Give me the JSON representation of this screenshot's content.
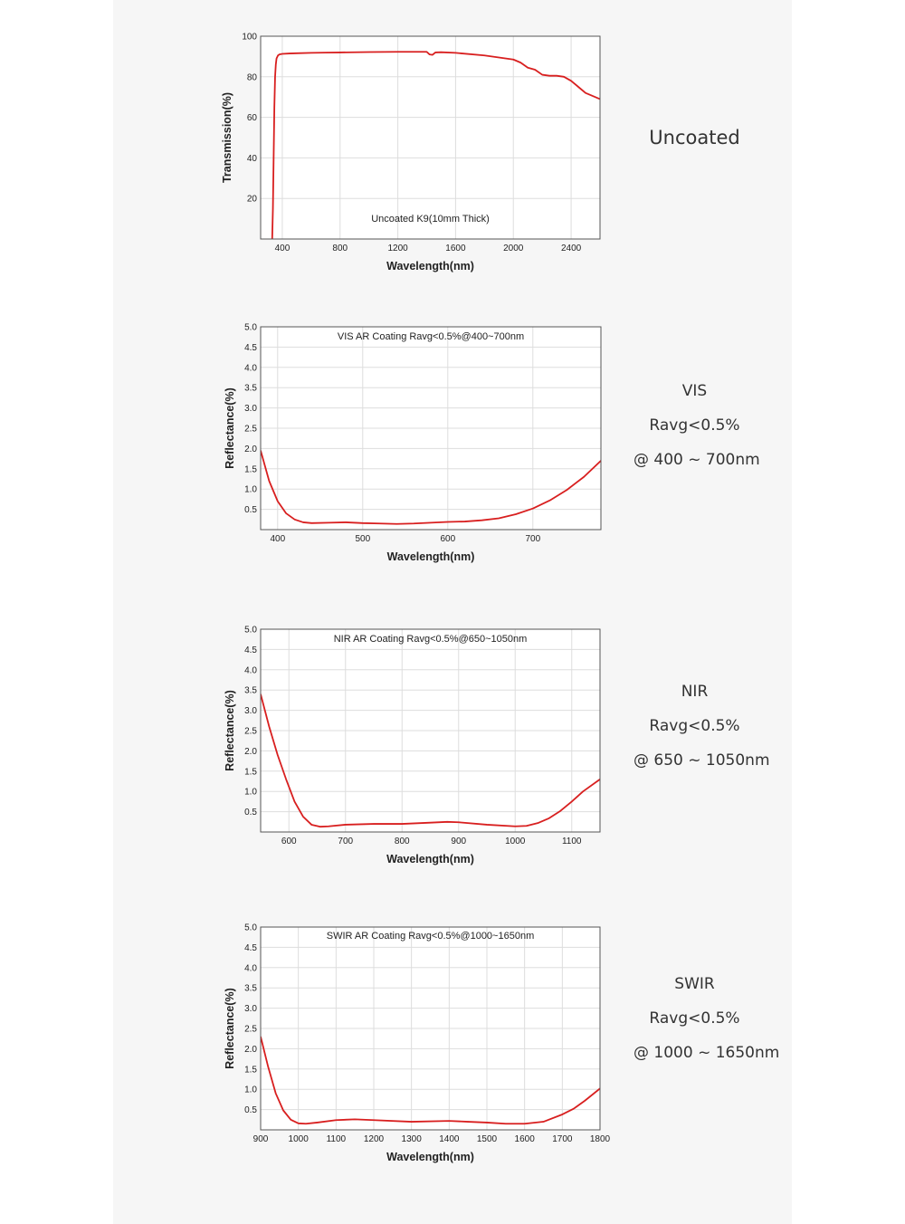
{
  "colors": {
    "curve": "#d81f1f",
    "grid": "#dddddd",
    "frame": "#555555",
    "panel": "#f6f6f6"
  },
  "panels": [
    {
      "side": {
        "lines": [
          "Uncoated"
        ]
      }
    },
    {
      "side": {
        "lines": [
          "VIS",
          "Ravg<0.5%",
          "@ 400 ~ 700nm"
        ]
      }
    },
    {
      "side": {
        "lines": [
          "NIR",
          "Ravg<0.5%",
          "@ 650 ~ 1050nm"
        ]
      }
    },
    {
      "side": {
        "lines": [
          "SWIR",
          "Ravg<0.5%",
          "@ 1000 ~ 1650nm"
        ]
      }
    }
  ],
  "chart_data": [
    {
      "type": "line",
      "title": "Uncoated K9(10mm Thick)",
      "xlabel": "Wavelength(nm)",
      "ylabel": "Transmission(%)",
      "xlim": [
        250,
        2600
      ],
      "ylim": [
        0,
        100
      ],
      "xticks": [
        400,
        800,
        1200,
        1600,
        2000,
        2400
      ],
      "yticks": [
        20,
        40,
        60,
        80,
        100
      ],
      "grid": true,
      "x": [
        330,
        335,
        340,
        345,
        350,
        355,
        360,
        370,
        380,
        400,
        450,
        500,
        600,
        700,
        800,
        1000,
        1200,
        1400,
        1420,
        1440,
        1460,
        1500,
        1600,
        1800,
        2000,
        2050,
        2100,
        2150,
        2200,
        2250,
        2300,
        2350,
        2400,
        2450,
        2500,
        2550,
        2600
      ],
      "y": [
        0,
        15,
        40,
        65,
        80,
        86,
        89,
        90.5,
        91,
        91.3,
        91.5,
        91.6,
        91.8,
        91.9,
        92,
        92.2,
        92.3,
        92.3,
        91,
        90.8,
        92,
        92.1,
        91.8,
        90.5,
        88.5,
        87,
        84.5,
        83.5,
        81,
        80.5,
        80.5,
        80,
        78,
        75,
        72,
        70.5,
        69
      ]
    },
    {
      "type": "line",
      "title": "VIS AR Coating Ravg<0.5%@400~700nm",
      "xlabel": "Wavelength(nm)",
      "ylabel": "Reflectance(%)",
      "xlim": [
        380,
        780
      ],
      "ylim": [
        0,
        5
      ],
      "xticks": [
        400,
        500,
        600,
        700
      ],
      "yticks": [
        0.5,
        1.0,
        1.5,
        2.0,
        2.5,
        3.0,
        3.5,
        4.0,
        4.5,
        5.0
      ],
      "grid": true,
      "x": [
        380,
        390,
        400,
        410,
        420,
        430,
        440,
        460,
        480,
        500,
        520,
        540,
        560,
        580,
        600,
        620,
        640,
        660,
        680,
        700,
        720,
        740,
        760,
        780
      ],
      "y": [
        1.95,
        1.2,
        0.7,
        0.4,
        0.25,
        0.18,
        0.16,
        0.17,
        0.18,
        0.16,
        0.15,
        0.14,
        0.15,
        0.17,
        0.19,
        0.2,
        0.23,
        0.28,
        0.38,
        0.52,
        0.72,
        0.98,
        1.3,
        1.7
      ]
    },
    {
      "type": "line",
      "title": "NIR AR Coating Ravg<0.5%@650~1050nm",
      "xlabel": "Wavelength(nm)",
      "ylabel": "Reflectance(%)",
      "xlim": [
        550,
        1150
      ],
      "ylim": [
        0,
        5
      ],
      "xticks": [
        600,
        700,
        800,
        900,
        1000,
        1100
      ],
      "yticks": [
        0.5,
        1.0,
        1.5,
        2.0,
        2.5,
        3.0,
        3.5,
        4.0,
        4.5,
        5.0
      ],
      "grid": true,
      "x": [
        550,
        565,
        580,
        595,
        610,
        625,
        640,
        655,
        670,
        700,
        750,
        800,
        850,
        880,
        900,
        950,
        1000,
        1020,
        1040,
        1060,
        1080,
        1100,
        1120,
        1150
      ],
      "y": [
        3.4,
        2.6,
        1.9,
        1.3,
        0.75,
        0.38,
        0.18,
        0.13,
        0.14,
        0.18,
        0.2,
        0.2,
        0.23,
        0.25,
        0.24,
        0.18,
        0.14,
        0.15,
        0.22,
        0.34,
        0.52,
        0.75,
        1.0,
        1.3
      ]
    },
    {
      "type": "line",
      "title": "SWIR AR Coating Ravg<0.5%@1000~1650nm",
      "xlabel": "Wavelength(nm)",
      "ylabel": "Reflectance(%)",
      "xlim": [
        900,
        1800
      ],
      "ylim": [
        0,
        5
      ],
      "xticks": [
        900,
        1000,
        1100,
        1200,
        1300,
        1400,
        1500,
        1600,
        1700,
        1800
      ],
      "yticks": [
        0.5,
        1.0,
        1.5,
        2.0,
        2.5,
        3.0,
        3.5,
        4.0,
        4.5,
        5.0
      ],
      "grid": true,
      "x": [
        900,
        920,
        940,
        960,
        980,
        1000,
        1020,
        1050,
        1100,
        1150,
        1200,
        1300,
        1400,
        1450,
        1500,
        1550,
        1600,
        1650,
        1700,
        1730,
        1760,
        1800
      ],
      "y": [
        2.3,
        1.55,
        0.9,
        0.48,
        0.25,
        0.16,
        0.15,
        0.18,
        0.24,
        0.26,
        0.24,
        0.2,
        0.22,
        0.2,
        0.18,
        0.15,
        0.15,
        0.2,
        0.38,
        0.52,
        0.72,
        1.02
      ]
    }
  ]
}
